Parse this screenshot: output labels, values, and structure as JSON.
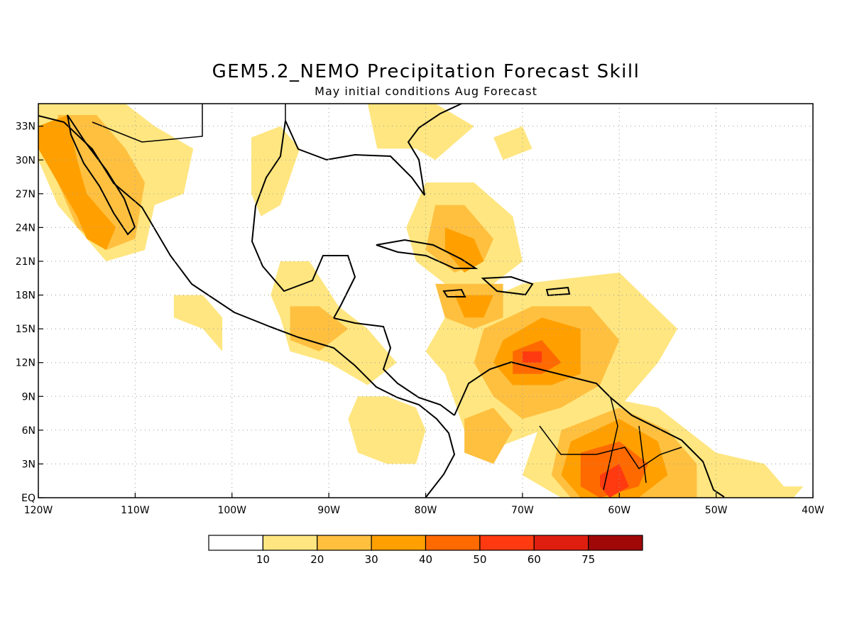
{
  "title": "GEM5.2_NEMO Precipitation Forecast Skill",
  "subtitle": "May initial conditions  Aug Forecast",
  "map": {
    "lon_range": [
      -120,
      -40
    ],
    "lat_range": [
      0,
      35
    ],
    "x_ticks": [
      {
        "lon": -120,
        "label": "120W"
      },
      {
        "lon": -110,
        "label": "110W"
      },
      {
        "lon": -100,
        "label": "100W"
      },
      {
        "lon": -90,
        "label": "90W"
      },
      {
        "lon": -80,
        "label": "80W"
      },
      {
        "lon": -70,
        "label": "70W"
      },
      {
        "lon": -60,
        "label": "60W"
      },
      {
        "lon": -50,
        "label": "50W"
      },
      {
        "lon": -40,
        "label": "40W"
      }
    ],
    "y_ticks": [
      {
        "lat": 0,
        "label": "EQ"
      },
      {
        "lat": 3,
        "label": "3N"
      },
      {
        "lat": 6,
        "label": "6N"
      },
      {
        "lat": 9,
        "label": "9N"
      },
      {
        "lat": 12,
        "label": "12N"
      },
      {
        "lat": 15,
        "label": "15N"
      },
      {
        "lat": 18,
        "label": "18N"
      },
      {
        "lat": 21,
        "label": "21N"
      },
      {
        "lat": 24,
        "label": "24N"
      },
      {
        "lat": 27,
        "label": "27N"
      },
      {
        "lat": 30,
        "label": "30N"
      },
      {
        "lat": 33,
        "label": "33N"
      }
    ],
    "skill_regions": [
      {
        "name": "northwest-mexico",
        "level": 1,
        "points": [
          [
            -120,
            35
          ],
          [
            -111,
            35
          ],
          [
            -108,
            33
          ],
          [
            -104,
            31
          ],
          [
            -105,
            27
          ],
          [
            -108,
            26
          ],
          [
            -109,
            22
          ],
          [
            -113,
            21
          ],
          [
            -118,
            26
          ],
          [
            -120,
            30
          ]
        ]
      },
      {
        "name": "northwest-mexico",
        "level": 2,
        "points": [
          [
            -118,
            34
          ],
          [
            -114,
            34
          ],
          [
            -111,
            31
          ],
          [
            -109,
            28
          ],
          [
            -110,
            23
          ],
          [
            -113,
            22
          ],
          [
            -116,
            24
          ],
          [
            -118,
            28
          ]
        ]
      },
      {
        "name": "northwest-mexico",
        "level": 3,
        "points": [
          [
            -120,
            33
          ],
          [
            -117,
            34
          ],
          [
            -116,
            30
          ],
          [
            -115,
            27
          ],
          [
            -112,
            24
          ],
          [
            -113,
            22
          ],
          [
            -115,
            23
          ],
          [
            -116,
            25
          ],
          [
            -120,
            31
          ]
        ]
      },
      {
        "name": "gulf-coast-texas",
        "level": 1,
        "points": [
          [
            -98,
            32
          ],
          [
            -95,
            33
          ],
          [
            -93,
            31
          ],
          [
            -95,
            26
          ],
          [
            -97,
            25
          ],
          [
            -98,
            27
          ]
        ]
      },
      {
        "name": "south-mexico-guatemala",
        "level": 1,
        "points": [
          [
            -95,
            21
          ],
          [
            -92,
            21
          ],
          [
            -89,
            17
          ],
          [
            -86,
            15
          ],
          [
            -83,
            12
          ],
          [
            -86,
            10
          ],
          [
            -90,
            12
          ],
          [
            -94,
            13
          ],
          [
            -95,
            16
          ],
          [
            -96,
            18
          ]
        ]
      },
      {
        "name": "south-mexico-guatemala",
        "level": 2,
        "points": [
          [
            -94,
            17
          ],
          [
            -91,
            17
          ],
          [
            -88,
            15
          ],
          [
            -91,
            13
          ],
          [
            -94,
            14
          ]
        ]
      },
      {
        "name": "west-pacific-patch",
        "level": 1,
        "points": [
          [
            -106,
            18
          ],
          [
            -103,
            18
          ],
          [
            -101,
            16
          ],
          [
            -101,
            13
          ],
          [
            -103,
            15
          ],
          [
            -106,
            16
          ]
        ]
      },
      {
        "name": "eastern-pacific-offshore",
        "level": 1,
        "points": [
          [
            -87,
            9
          ],
          [
            -84,
            9
          ],
          [
            -81,
            8
          ],
          [
            -80,
            6
          ],
          [
            -81,
            3
          ],
          [
            -84,
            3
          ],
          [
            -87,
            4
          ],
          [
            -88,
            7
          ]
        ]
      },
      {
        "name": "southeast-us",
        "level": 1,
        "points": [
          [
            -86,
            35
          ],
          [
            -79,
            35
          ],
          [
            -75,
            33
          ],
          [
            -79,
            30
          ],
          [
            -81,
            31
          ],
          [
            -85,
            31
          ]
        ]
      },
      {
        "name": "bahamas-cuba",
        "level": 1,
        "points": [
          [
            -80,
            28
          ],
          [
            -75,
            28
          ],
          [
            -71,
            25
          ],
          [
            -70,
            21
          ],
          [
            -73,
            19
          ],
          [
            -76,
            17
          ],
          [
            -78,
            19
          ],
          [
            -81,
            21
          ],
          [
            -82,
            24
          ]
        ]
      },
      {
        "name": "bahamas-cuba",
        "level": 2,
        "points": [
          [
            -79,
            26
          ],
          [
            -76,
            26
          ],
          [
            -73,
            23
          ],
          [
            -74,
            21
          ],
          [
            -77,
            20
          ],
          [
            -80,
            22
          ]
        ]
      },
      {
        "name": "bahamas-cuba",
        "level": 3,
        "points": [
          [
            -78,
            24
          ],
          [
            -75,
            23
          ],
          [
            -74,
            21
          ],
          [
            -76,
            20
          ],
          [
            -78,
            22
          ]
        ]
      },
      {
        "name": "jamaica-haiti",
        "level": 2,
        "points": [
          [
            -79,
            19
          ],
          [
            -72,
            19
          ],
          [
            -72,
            16
          ],
          [
            -75,
            15
          ],
          [
            -78,
            16
          ]
        ]
      },
      {
        "name": "jamaica-haiti",
        "level": 3,
        "points": [
          [
            -77,
            18
          ],
          [
            -73,
            18
          ],
          [
            -74,
            16
          ],
          [
            -76,
            16
          ]
        ]
      },
      {
        "name": "caribbean-core",
        "level": 1,
        "points": [
          [
            -78,
            16
          ],
          [
            -70,
            19
          ],
          [
            -60,
            20
          ],
          [
            -54,
            15
          ],
          [
            -56,
            12
          ],
          [
            -60,
            8
          ],
          [
            -62,
            6
          ],
          [
            -68,
            6
          ],
          [
            -74,
            4
          ],
          [
            -76,
            6
          ],
          [
            -78,
            11
          ],
          [
            -80,
            13
          ]
        ]
      },
      {
        "name": "caribbean-core",
        "level": 2,
        "points": [
          [
            -74,
            15
          ],
          [
            -69,
            17
          ],
          [
            -63,
            17
          ],
          [
            -60,
            14
          ],
          [
            -62,
            10
          ],
          [
            -66,
            8
          ],
          [
            -70,
            7
          ],
          [
            -73,
            9
          ],
          [
            -75,
            12
          ]
        ]
      },
      {
        "name": "caribbean-core",
        "level": 3,
        "points": [
          [
            -72,
            14
          ],
          [
            -68,
            16
          ],
          [
            -64,
            15
          ],
          [
            -64,
            11
          ],
          [
            -67,
            10
          ],
          [
            -71,
            10
          ],
          [
            -73,
            12
          ]
        ]
      },
      {
        "name": "caribbean-core",
        "level": 4,
        "points": [
          [
            -71,
            13
          ],
          [
            -68,
            14
          ],
          [
            -66,
            12
          ],
          [
            -68,
            11
          ],
          [
            -71,
            11
          ]
        ]
      },
      {
        "name": "caribbean-core",
        "level": 5,
        "points": [
          [
            -70,
            13
          ],
          [
            -68,
            13
          ],
          [
            -68,
            12
          ],
          [
            -70,
            12
          ]
        ]
      },
      {
        "name": "guianas-amazon",
        "level": 1,
        "points": [
          [
            -68,
            7
          ],
          [
            -62,
            9
          ],
          [
            -56,
            8
          ],
          [
            -50,
            4
          ],
          [
            -45,
            3
          ],
          [
            -43,
            1
          ],
          [
            -44,
            0
          ],
          [
            -66,
            0
          ],
          [
            -70,
            2
          ]
        ]
      },
      {
        "name": "guianas-amazon",
        "level": 2,
        "points": [
          [
            -66,
            6
          ],
          [
            -60,
            8
          ],
          [
            -55,
            6
          ],
          [
            -52,
            3
          ],
          [
            -52,
            0
          ],
          [
            -65,
            0
          ],
          [
            -67,
            2
          ]
        ]
      },
      {
        "name": "guianas-amazon",
        "level": 3,
        "points": [
          [
            -65,
            5
          ],
          [
            -60,
            7
          ],
          [
            -56,
            5
          ],
          [
            -55,
            2
          ],
          [
            -58,
            0
          ],
          [
            -64,
            0
          ],
          [
            -66,
            2
          ]
        ]
      },
      {
        "name": "guianas-amazon",
        "level": 4,
        "points": [
          [
            -64,
            4
          ],
          [
            -60,
            5
          ],
          [
            -57,
            3
          ],
          [
            -58,
            1
          ],
          [
            -62,
            0
          ],
          [
            -64,
            1
          ]
        ]
      },
      {
        "name": "guianas-amazon",
        "level": 5,
        "points": [
          [
            -62,
            2
          ],
          [
            -60,
            3
          ],
          [
            -59,
            1
          ],
          [
            -61,
            0
          ],
          [
            -62,
            1
          ]
        ]
      },
      {
        "name": "atlantic-east-patch",
        "level": 1,
        "points": [
          [
            -44,
            1
          ],
          [
            -41,
            1
          ],
          [
            -42,
            0
          ],
          [
            -44,
            0
          ]
        ]
      },
      {
        "name": "north-atlantic-patch",
        "level": 1,
        "points": [
          [
            -73,
            32
          ],
          [
            -70,
            33
          ],
          [
            -69,
            31
          ],
          [
            -72,
            30
          ]
        ]
      },
      {
        "name": "colombia-interior",
        "level": 2,
        "points": [
          [
            -76,
            7
          ],
          [
            -73,
            8
          ],
          [
            -71,
            6
          ],
          [
            -73,
            3
          ],
          [
            -76,
            4
          ]
        ]
      }
    ]
  },
  "colorbar": {
    "colors": [
      "#ffffff",
      "#ffe680",
      "#ffc040",
      "#ffa000",
      "#ff6a00",
      "#ff3a10",
      "#e01e10",
      "#a00808"
    ],
    "labels": [
      "10",
      "20",
      "30",
      "40",
      "50",
      "60",
      "75"
    ]
  }
}
